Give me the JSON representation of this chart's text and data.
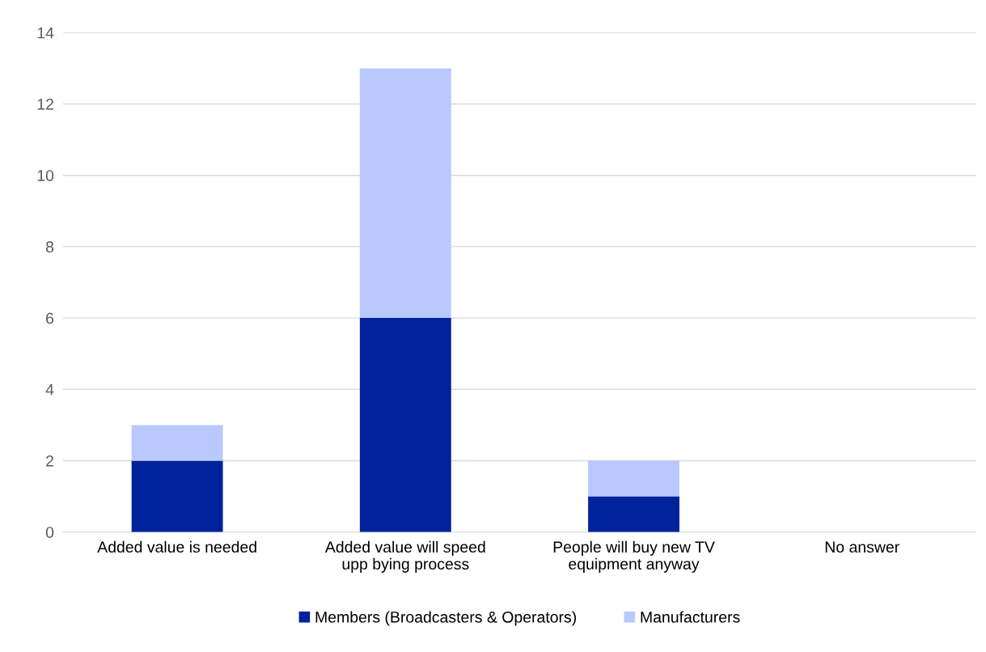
{
  "chart_data": {
    "type": "bar",
    "stacked": true,
    "categories": [
      "Added value is needed",
      "Added value will speed\nupp bying process",
      "People will buy new TV\nequipment anyway",
      "No answer"
    ],
    "series": [
      {
        "name": "Members (Broadcasters & Operators)",
        "color": "#00239c",
        "values": [
          2,
          6,
          1,
          0
        ]
      },
      {
        "name": "Manufacturers",
        "color": "#b9c9fd",
        "values": [
          1,
          7,
          1,
          0
        ]
      }
    ],
    "ylim": [
      0,
      14
    ],
    "yticks": [
      0,
      2,
      4,
      6,
      8,
      10,
      12,
      14
    ],
    "grid": "y",
    "legend": "bottom"
  }
}
